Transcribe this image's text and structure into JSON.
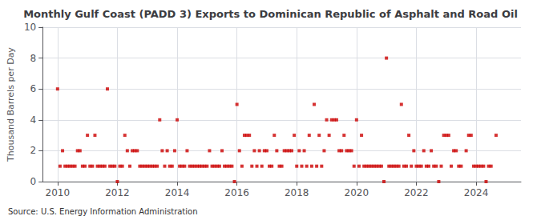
{
  "chart_data": {
    "type": "scatter",
    "title": "Monthly Gulf Coast (PADD 3) Exports to Dominican Republic of Asphalt and Road Oil",
    "ylabel": "Thousand Barrels per Day",
    "annotations": [
      "Source: U.S. Energy Information Administration"
    ],
    "color": "#cc0000",
    "marker": "square",
    "grid": true,
    "xlim": [
      2009.5,
      2025.5
    ],
    "xticks": [
      2010,
      2012,
      2014,
      2016,
      2018,
      2020,
      2022,
      2024
    ],
    "ylim": [
      0,
      10
    ],
    "yticks": [
      0,
      2,
      4,
      6,
      8,
      10
    ],
    "x": [
      2010.0,
      2010.083,
      2010.167,
      2010.25,
      2010.333,
      2010.417,
      2010.5,
      2010.583,
      2010.667,
      2010.75,
      2010.833,
      2010.917,
      2011.0,
      2011.083,
      2011.167,
      2011.25,
      2011.333,
      2011.417,
      2011.5,
      2011.583,
      2011.667,
      2011.75,
      2011.833,
      2011.917,
      2012.0,
      2012.083,
      2012.167,
      2012.25,
      2012.333,
      2012.417,
      2012.5,
      2012.583,
      2012.667,
      2012.75,
      2012.833,
      2012.917,
      2013.0,
      2013.083,
      2013.167,
      2013.25,
      2013.333,
      2013.417,
      2013.5,
      2013.583,
      2013.667,
      2013.75,
      2013.833,
      2013.917,
      2014.0,
      2014.083,
      2014.167,
      2014.25,
      2014.333,
      2014.417,
      2014.5,
      2014.583,
      2014.667,
      2014.75,
      2014.833,
      2014.917,
      2015.0,
      2015.083,
      2015.167,
      2015.25,
      2015.333,
      2015.417,
      2015.5,
      2015.583,
      2015.667,
      2015.75,
      2015.833,
      2015.917,
      2016.0,
      2016.083,
      2016.167,
      2016.25,
      2016.333,
      2016.417,
      2016.5,
      2016.583,
      2016.667,
      2016.75,
      2016.833,
      2016.917,
      2017.0,
      2017.083,
      2017.167,
      2017.25,
      2017.333,
      2017.417,
      2017.5,
      2017.583,
      2017.667,
      2017.75,
      2017.833,
      2017.917,
      2018.0,
      2018.083,
      2018.167,
      2018.25,
      2018.333,
      2018.417,
      2018.5,
      2018.583,
      2018.667,
      2018.75,
      2018.833,
      2018.917,
      2019.0,
      2019.083,
      2019.167,
      2019.25,
      2019.333,
      2019.417,
      2019.5,
      2019.583,
      2019.667,
      2019.75,
      2019.833,
      2019.917,
      2020.0,
      2020.083,
      2020.167,
      2020.25,
      2020.333,
      2020.417,
      2020.5,
      2020.583,
      2020.667,
      2020.75,
      2020.833,
      2020.917,
      2021.0,
      2021.083,
      2021.167,
      2021.25,
      2021.333,
      2021.417,
      2021.5,
      2021.583,
      2021.667,
      2021.75,
      2021.833,
      2021.917,
      2022.0,
      2022.083,
      2022.167,
      2022.25,
      2022.333,
      2022.417,
      2022.5,
      2022.583,
      2022.667,
      2022.75,
      2022.833,
      2022.917,
      2023.0,
      2023.083,
      2023.167,
      2023.25,
      2023.333,
      2023.417,
      2023.5,
      2023.667,
      2023.75,
      2023.833,
      2023.917,
      2024.0,
      2024.083,
      2024.167,
      2024.25,
      2024.333,
      2024.417,
      2024.5,
      2024.667
    ],
    "values": [
      6,
      1,
      2,
      1,
      1,
      1,
      1,
      1,
      2,
      2,
      1,
      1,
      3,
      1,
      1,
      3,
      1,
      1,
      1,
      1,
      6,
      1,
      1,
      1,
      0,
      1,
      1,
      3,
      2,
      1,
      2,
      2,
      2,
      1,
      1,
      1,
      1,
      1,
      1,
      1,
      1,
      4,
      2,
      1,
      2,
      1,
      1,
      2,
      4,
      1,
      1,
      1,
      2,
      1,
      1,
      1,
      1,
      1,
      1,
      1,
      1,
      2,
      1,
      1,
      1,
      1,
      2,
      1,
      1,
      1,
      1,
      0,
      5,
      2,
      1,
      3,
      3,
      3,
      1,
      2,
      1,
      2,
      1,
      2,
      2,
      1,
      1,
      3,
      2,
      1,
      1,
      2,
      2,
      2,
      2,
      3,
      1,
      2,
      1,
      2,
      1,
      3,
      1,
      5,
      1,
      3,
      1,
      2,
      4,
      3,
      4,
      4,
      4,
      2,
      2,
      3,
      2,
      2,
      2,
      1,
      4,
      1,
      3,
      1,
      1,
      1,
      1,
      1,
      1,
      1,
      1,
      0,
      8,
      1,
      1,
      1,
      1,
      1,
      5,
      1,
      1,
      3,
      1,
      2,
      1,
      1,
      1,
      2,
      1,
      1,
      2,
      1,
      1,
      0,
      1,
      3,
      3,
      3,
      1,
      2,
      2,
      1,
      1,
      2,
      3,
      3,
      1,
      1,
      1,
      1,
      1,
      0,
      1,
      1,
      3
    ]
  }
}
